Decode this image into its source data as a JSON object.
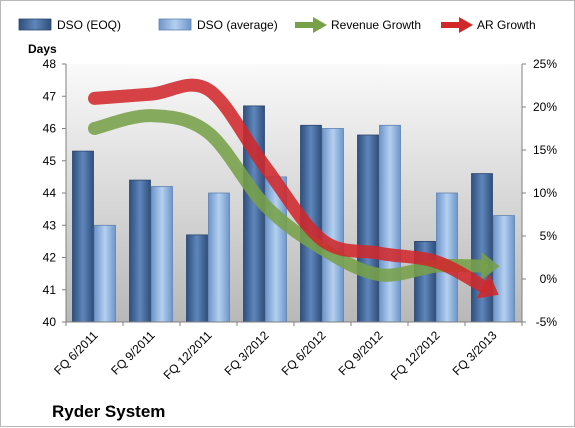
{
  "chart_data": {
    "type": "bar",
    "title": "Ryder System",
    "ylabel": "Days",
    "categories": [
      "FQ 6/2011",
      "FQ 9/2011",
      "FQ 12/2011",
      "FQ 3/2012",
      "FQ 6/2012",
      "FQ 9/2012",
      "FQ 12/2012",
      "FQ 3/2013"
    ],
    "ylim": [
      40,
      48
    ],
    "yticks": [
      "40",
      "41",
      "42",
      "43",
      "44",
      "45",
      "46",
      "47",
      "48"
    ],
    "y2lim": [
      -5,
      25
    ],
    "y2ticks": [
      "-5%",
      "0%",
      "5%",
      "10%",
      "15%",
      "20%",
      "25%"
    ],
    "grid": false,
    "legend_position": "top",
    "series": [
      {
        "name": "DSO (EOQ)",
        "kind": "bar",
        "color": "#4a6d9c",
        "values": [
          45.3,
          44.4,
          42.7,
          46.7,
          46.1,
          45.8,
          42.5,
          44.6
        ]
      },
      {
        "name": "DSO (average)",
        "kind": "bar",
        "color": "#8fb4e3",
        "values": [
          43.0,
          44.2,
          44.0,
          44.5,
          46.0,
          46.1,
          44.0,
          43.3
        ]
      },
      {
        "name": "Revenue Growth",
        "kind": "arrow-line",
        "axis": "right",
        "color": "#77a049",
        "values": [
          17.5,
          19.0,
          17.0,
          8.5,
          3.5,
          0.5,
          1.5,
          1.5
        ]
      },
      {
        "name": "AR Growth",
        "kind": "arrow-line",
        "axis": "right",
        "color": "#d0282b",
        "values": [
          21.0,
          21.5,
          22.0,
          13.0,
          4.5,
          3.0,
          2.0,
          -1.5
        ]
      }
    ]
  }
}
